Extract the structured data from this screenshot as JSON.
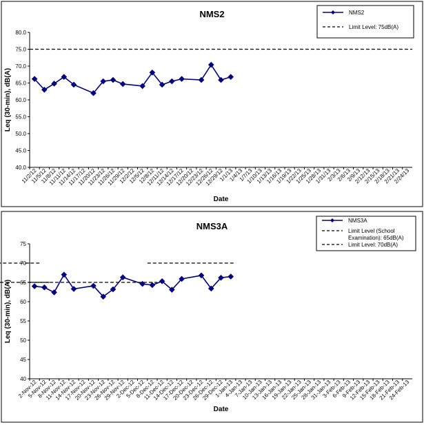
{
  "chart_data": [
    {
      "type": "line",
      "title": "NMS2",
      "xlabel": "Date",
      "ylabel": "Leq (30-min), dB(A)",
      "ylim": [
        40,
        80
      ],
      "ytick_labels": [
        "40.0",
        "45.0",
        "50.0",
        "55.0",
        "60.0",
        "65.0",
        "70.0",
        "75.0",
        "80.0"
      ],
      "categories": [
        "11/2/12",
        "11/5/12",
        "11/8/12",
        "11/11/12",
        "11/14/12",
        "11/17/12",
        "11/20/12",
        "11/23/12",
        "11/26/12",
        "11/29/12",
        "12/2/12",
        "12/5/12",
        "12/8/12",
        "12/11/12",
        "12/14/12",
        "12/17/12",
        "12/20/12",
        "12/23/12",
        "12/26/12",
        "12/29/12",
        "1/1/13",
        "1/4/13",
        "1/7/13",
        "1/10/13",
        "1/13/13",
        "1/16/13",
        "1/19/13",
        "1/22/13",
        "1/25/13",
        "1/28/13",
        "1/31/13",
        "2/3/13",
        "2/6/13",
        "2/9/13",
        "2/12/13",
        "2/15/13",
        "2/18/13",
        "2/21/13",
        "2/24/13"
      ],
      "series": [
        {
          "name": "NMS2",
          "color": "#000080",
          "marker": "diamond",
          "points": [
            {
              "x": "11/2/12",
              "y": 66.2
            },
            {
              "x": "11/5/12",
              "y": 63.0
            },
            {
              "x": "11/8/12",
              "y": 64.8
            },
            {
              "x": "11/11/12",
              "y": 66.8
            },
            {
              "x": "11/14/12",
              "y": 64.5
            },
            {
              "x": "11/20/12",
              "y": 62.0
            },
            {
              "x": "11/23/12",
              "y": 65.5
            },
            {
              "x": "11/26/12",
              "y": 65.9
            },
            {
              "x": "11/29/12",
              "y": 64.7
            },
            {
              "x": "12/5/12",
              "y": 64.1
            },
            {
              "x": "12/8/12",
              "y": 68.1
            },
            {
              "x": "12/11/12",
              "y": 64.5
            },
            {
              "x": "12/14/12",
              "y": 65.5
            },
            {
              "x": "12/17/12",
              "y": 66.2
            },
            {
              "x": "12/23/12",
              "y": 65.9
            },
            {
              "x": "12/26/12",
              "y": 70.4
            },
            {
              "x": "12/29/12",
              "y": 65.9
            },
            {
              "x": "1/1/13",
              "y": 66.8
            }
          ]
        }
      ],
      "limit_lines": [
        {
          "name": "Limit Level: 75dB(A)",
          "y": 75,
          "from": "11/2/12",
          "to": "2/24/13",
          "style": "dashed"
        }
      ],
      "legend": {
        "position": "top-right",
        "entries": [
          "NMS2",
          "Limit Level: 75dB(A)"
        ]
      }
    },
    {
      "type": "line",
      "title": "NMS3A",
      "xlabel": "Date",
      "ylabel": "Leq (30-min), dB(A)",
      "ylim": [
        40,
        75
      ],
      "ytick_labels": [
        "40",
        "45",
        "50",
        "55",
        "60",
        "65",
        "70",
        "75"
      ],
      "categories": [
        "2-Nov-12",
        "5-Nov-12",
        "8-Nov-12",
        "11-Nov-12",
        "14-Nov-12",
        "17-Nov-12",
        "20-Nov-12",
        "23-Nov-12",
        "26-Nov-12",
        "29-Nov-12",
        "2-Dec-12",
        "5-Dec-12",
        "8-Dec-12",
        "11-Dec-12",
        "14-Dec-12",
        "17-Dec-12",
        "20-Dec-12",
        "23-Dec-12",
        "26-Dec-12",
        "29-Dec-12",
        "1-Jan-13",
        "4-Jan-13",
        "7-Jan-13",
        "10-Jan-13",
        "13-Jan-13",
        "16-Jan-13",
        "19-Jan-13",
        "22-Jan-13",
        "25-Jan-13",
        "28-Jan-13",
        "31-Jan-13",
        "3-Feb-13",
        "6-Feb-13",
        "9-Feb-13",
        "12-Feb-13",
        "15-Feb-13",
        "18-Feb-13",
        "21-Feb-13",
        "24-Feb-13"
      ],
      "series": [
        {
          "name": "NMS3A",
          "color": "#000080",
          "marker": "diamond",
          "points": [
            {
              "x": "2-Nov-12",
              "y": 64.0
            },
            {
              "x": "5-Nov-12",
              "y": 63.7
            },
            {
              "x": "8-Nov-12",
              "y": 62.4
            },
            {
              "x": "11-Nov-12",
              "y": 67.0
            },
            {
              "x": "14-Nov-12",
              "y": 63.3
            },
            {
              "x": "20-Nov-12",
              "y": 64.1
            },
            {
              "x": "23-Nov-12",
              "y": 61.3
            },
            {
              "x": "26-Nov-12",
              "y": 63.2
            },
            {
              "x": "29-Nov-12",
              "y": 66.3
            },
            {
              "x": "5-Dec-12",
              "y": 64.6
            },
            {
              "x": "8-Dec-12",
              "y": 64.3
            },
            {
              "x": "11-Dec-12",
              "y": 65.3
            },
            {
              "x": "14-Dec-12",
              "y": 63.1
            },
            {
              "x": "17-Dec-12",
              "y": 65.9
            },
            {
              "x": "23-Dec-12",
              "y": 66.8
            },
            {
              "x": "26-Dec-12",
              "y": 63.4
            },
            {
              "x": "29-Dec-12",
              "y": 66.2
            },
            {
              "x": "1-Jan-13",
              "y": 66.5
            }
          ]
        }
      ],
      "limit_lines": [
        {
          "name": "Limit Level (School Examination): 65dB(A)",
          "y": 65,
          "from": "2-Nov-12",
          "to": "5-Nov-12",
          "style": "dashed"
        },
        {
          "name": "Limit Level (School Examination): 65dB(A)",
          "y": 65,
          "from": "4-Dec-12",
          "to": "8-Dec-12",
          "style": "dashed"
        },
        {
          "name": "Limit Level: 70dB(A)",
          "y": 70,
          "from": "5-Nov-12",
          "to": "1-Dec-12",
          "style": "dashed"
        },
        {
          "name": "Limit Level: 70dB(A)",
          "y": 70,
          "from": "8-Dec-12",
          "to": "1-Jan-13",
          "style": "dashed"
        }
      ],
      "legend": {
        "position": "top-right",
        "entries": [
          "NMS3A",
          "Limit Level (School",
          "Examination): 65dB(A)",
          "Limit Level: 70dB(A)"
        ]
      }
    }
  ]
}
